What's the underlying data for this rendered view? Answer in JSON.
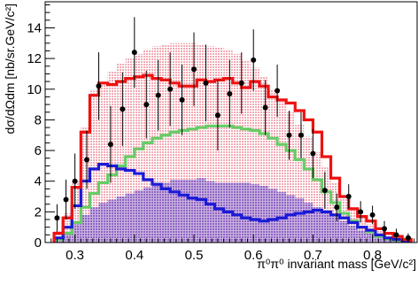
{
  "chart_data": {
    "type": "histogram",
    "xlabel": "π⁰π⁰ invariant mass [GeV/c²]",
    "ylabel": "dσ/dΩdm [nb/sr.GeV/c²]",
    "xlim": [
      0.25,
      0.875
    ],
    "ylim": [
      0,
      15.7
    ],
    "xticks": [
      "0.3",
      "0.4",
      "0.5",
      "0.6",
      "0.7",
      "0.8"
    ],
    "yticks": [
      "0",
      "2",
      "4",
      "6",
      "8",
      "10",
      "12",
      "14"
    ],
    "bin_edges": [
      0.265,
      0.28,
      0.295,
      0.31,
      0.325,
      0.34,
      0.355,
      0.37,
      0.385,
      0.4,
      0.415,
      0.43,
      0.445,
      0.46,
      0.475,
      0.49,
      0.505,
      0.52,
      0.535,
      0.55,
      0.565,
      0.58,
      0.595,
      0.61,
      0.625,
      0.64,
      0.655,
      0.67,
      0.685,
      0.7,
      0.715,
      0.73,
      0.745,
      0.76,
      0.775,
      0.79,
      0.805,
      0.82,
      0.835,
      0.85,
      0.865
    ],
    "colors": {
      "total": "#ee1111",
      "green": "#66cc66",
      "blue": "#1a1ad6",
      "pink_band": "#f3a8b3",
      "purple_band": "#9b73c6",
      "points": "#000000"
    },
    "series": [
      {
        "key": "total",
        "style": "step",
        "values": [
          0.6,
          1.6,
          3.6,
          7.2,
          9.6,
          10.4,
          10.3,
          10.5,
          10.7,
          10.8,
          10.9,
          10.7,
          10.6,
          10.4,
          10.2,
          10.2,
          10.6,
          10.5,
          10.6,
          10.7,
          10.4,
          10.1,
          10.5,
          10.2,
          9.5,
          9.3,
          9.1,
          8.6,
          8.0,
          7.2,
          5.6,
          4.2,
          3.0,
          2.2,
          1.7,
          1.4,
          0.9,
          0.6,
          0.4,
          0.2
        ]
      },
      {
        "key": "green",
        "style": "step",
        "values": [
          0.2,
          0.6,
          1.3,
          2.3,
          3.2,
          3.9,
          4.4,
          5.0,
          5.6,
          6.1,
          6.5,
          6.8,
          7.0,
          7.2,
          7.3,
          7.4,
          7.5,
          7.6,
          7.6,
          7.6,
          7.5,
          7.4,
          7.3,
          7.1,
          6.8,
          6.4,
          6.0,
          5.4,
          4.8,
          4.1,
          3.3,
          2.6,
          1.9,
          1.4,
          1.0,
          0.7,
          0.4,
          0.25,
          0.15,
          0.1
        ]
      },
      {
        "key": "blue",
        "style": "step",
        "values": [
          0.3,
          1.0,
          2.4,
          4.0,
          4.8,
          5.1,
          5.0,
          4.8,
          4.7,
          4.5,
          4.1,
          3.8,
          3.5,
          3.3,
          3.1,
          2.9,
          2.8,
          2.5,
          2.2,
          2.0,
          1.8,
          1.6,
          1.5,
          1.4,
          1.5,
          1.6,
          1.8,
          1.9,
          2.0,
          2.1,
          2.0,
          1.8,
          1.6,
          1.3,
          1.0,
          0.8,
          0.5,
          0.3,
          0.2,
          0.1
        ]
      },
      {
        "key": "pink_band",
        "style": "band",
        "values": [
          0.8,
          1.9,
          4.0,
          7.5,
          9.9,
          10.4,
          11.2,
          11.7,
          12.0,
          12.3,
          12.6,
          12.8,
          12.9,
          13.0,
          13.0,
          13.0,
          12.9,
          12.8,
          12.7,
          12.6,
          12.3,
          11.9,
          11.4,
          10.8,
          10.0,
          9.2,
          8.5,
          7.7,
          6.9,
          5.9,
          4.9,
          3.9,
          3.0,
          2.3,
          1.7,
          1.2,
          0.8,
          0.5,
          0.3,
          0.2
        ]
      },
      {
        "key": "purple_band",
        "style": "band",
        "values": [
          0.3,
          0.6,
          1.2,
          1.8,
          2.3,
          2.6,
          2.8,
          3.0,
          3.2,
          3.4,
          3.6,
          3.8,
          3.9,
          4.1,
          4.1,
          4.1,
          4.2,
          4.0,
          3.9,
          3.9,
          3.9,
          3.9,
          3.8,
          3.7,
          3.5,
          3.3,
          3.1,
          2.9,
          2.6,
          2.3,
          2.0,
          1.7,
          1.4,
          1.1,
          0.8,
          0.6,
          0.4,
          0.3,
          0.15,
          0.1
        ]
      },
      {
        "key": "points",
        "style": "points",
        "points": [
          {
            "x": 0.27,
            "y": 1.6,
            "err": 0.9
          },
          {
            "x": 0.285,
            "y": 2.8,
            "err": 1.3
          },
          {
            "x": 0.3,
            "y": 4.0,
            "err": 1.8
          },
          {
            "x": 0.32,
            "y": 5.4,
            "err": 1.9
          },
          {
            "x": 0.34,
            "y": 10.2,
            "err": 2.2
          },
          {
            "x": 0.36,
            "y": 6.4,
            "err": 2.5
          },
          {
            "x": 0.38,
            "y": 8.7,
            "err": 2.4
          },
          {
            "x": 0.4,
            "y": 12.4,
            "err": 2.3
          },
          {
            "x": 0.42,
            "y": 9.0,
            "err": 2.2
          },
          {
            "x": 0.44,
            "y": 9.6,
            "err": 2.3
          },
          {
            "x": 0.46,
            "y": 10.0,
            "err": 2.4
          },
          {
            "x": 0.48,
            "y": 9.3,
            "err": 2.3
          },
          {
            "x": 0.5,
            "y": 11.3,
            "err": 2.4
          },
          {
            "x": 0.52,
            "y": 10.4,
            "err": 2.5
          },
          {
            "x": 0.54,
            "y": 8.3,
            "err": 2.3
          },
          {
            "x": 0.56,
            "y": 9.7,
            "err": 2.2
          },
          {
            "x": 0.58,
            "y": 10.4,
            "err": 2.0
          },
          {
            "x": 0.6,
            "y": 11.9,
            "err": 2.0
          },
          {
            "x": 0.62,
            "y": 8.8,
            "err": 1.8
          },
          {
            "x": 0.64,
            "y": 9.9,
            "err": 1.7
          },
          {
            "x": 0.66,
            "y": 7.0,
            "err": 1.6
          },
          {
            "x": 0.68,
            "y": 7.0,
            "err": 1.5
          },
          {
            "x": 0.7,
            "y": 5.8,
            "err": 1.6
          },
          {
            "x": 0.72,
            "y": 3.4,
            "err": 1.2
          },
          {
            "x": 0.74,
            "y": 2.3,
            "err": 0.9
          },
          {
            "x": 0.76,
            "y": 3.0,
            "err": 0.8
          },
          {
            "x": 0.78,
            "y": 2.0,
            "err": 0.7
          },
          {
            "x": 0.8,
            "y": 1.8,
            "err": 0.6
          },
          {
            "x": 0.82,
            "y": 0.9,
            "err": 0.5
          },
          {
            "x": 0.84,
            "y": 0.5,
            "err": 0.4
          },
          {
            "x": 0.86,
            "y": 0.3,
            "err": 0.3
          }
        ]
      }
    ]
  }
}
